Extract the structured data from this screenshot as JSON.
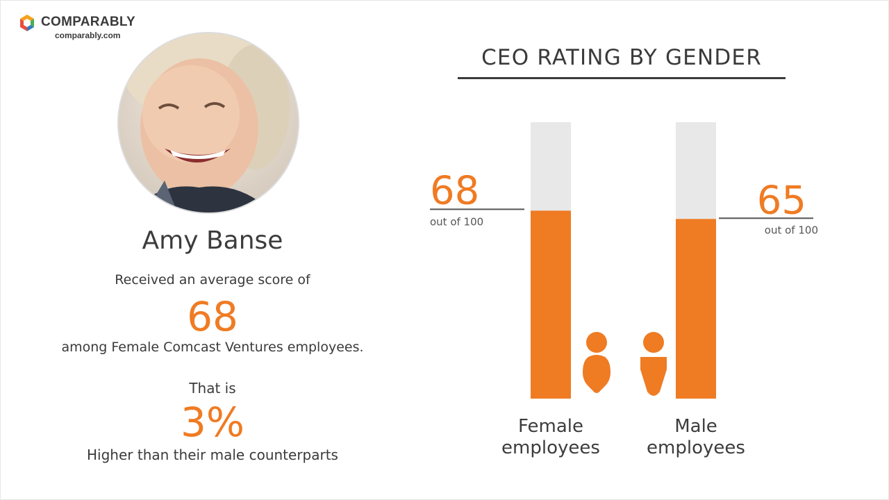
{
  "brand": {
    "name": "COMPARABLY",
    "url": "comparably.com",
    "colors": [
      "#f6a21d",
      "#4cae4f",
      "#2f7dc1",
      "#e94e3c"
    ]
  },
  "ceo": {
    "name": "Amy Banse",
    "avatar_icon": "ceo-portrait-photo"
  },
  "summary": {
    "intro": "Received an average score of",
    "score": "68",
    "context": "among Female Comcast Ventures employees.",
    "diff_intro": "That is",
    "diff_value": "3%",
    "diff_context": "Higher than their male counterparts"
  },
  "colors": {
    "accent": "#ef7b23",
    "track": "#e8e8e8",
    "text": "#3a3a3a"
  },
  "chart_data": {
    "type": "bar",
    "title": "CEO RATING BY GENDER",
    "categories": [
      "Female employees",
      "Male employees"
    ],
    "category_lines": [
      [
        "Female",
        "employees"
      ],
      [
        "Male",
        "employees"
      ]
    ],
    "values": [
      68,
      65
    ],
    "value_labels": [
      "68",
      "65"
    ],
    "suffix": "out of 100",
    "ylim": [
      0,
      100
    ],
    "icons": [
      "female-person-icon",
      "male-person-icon"
    ]
  }
}
